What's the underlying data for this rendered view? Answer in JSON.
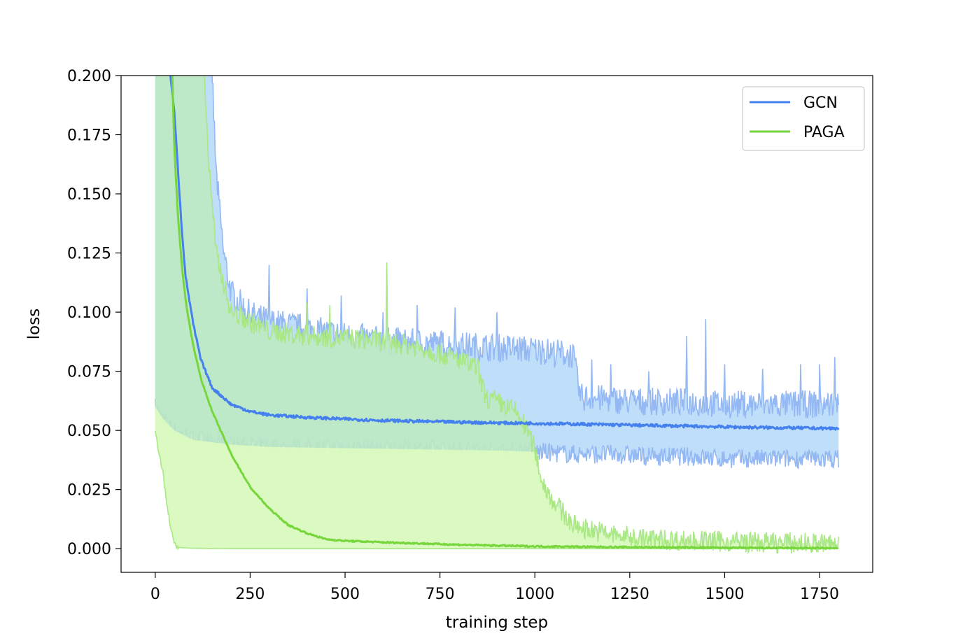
{
  "chart_data": {
    "type": "line",
    "title": "",
    "xlabel": "training step",
    "ylabel": "loss",
    "xlim": [
      -90,
      1890
    ],
    "ylim": [
      -0.01,
      0.2
    ],
    "xticks": [
      0,
      250,
      500,
      750,
      1000,
      1250,
      1500,
      1750
    ],
    "xtick_labels": [
      "0",
      "250",
      "500",
      "750",
      "1000",
      "1250",
      "1500",
      "1750"
    ],
    "yticks": [
      0.0,
      0.025,
      0.05,
      0.075,
      0.1,
      0.125,
      0.15,
      0.175,
      0.2
    ],
    "ytick_labels": [
      "0.000",
      "0.025",
      "0.050",
      "0.075",
      "0.100",
      "0.125",
      "0.150",
      "0.175",
      "0.200"
    ],
    "grid": false,
    "legend": "top-right",
    "series": [
      {
        "name": "GCN",
        "color": "#4580ef",
        "band_color": "#bcdcfa",
        "band_edge_color": "#93b8f4",
        "mean": {
          "x": [
            40,
            50,
            60,
            70,
            80,
            100,
            120,
            150,
            200,
            250,
            300,
            400,
            500,
            600,
            700,
            800,
            900,
            1000,
            1100,
            1200,
            1300,
            1400,
            1500,
            1600,
            1700,
            1800
          ],
          "y": [
            0.2,
            0.185,
            0.16,
            0.135,
            0.115,
            0.095,
            0.08,
            0.068,
            0.061,
            0.058,
            0.0565,
            0.0555,
            0.0548,
            0.0542,
            0.0538,
            0.0535,
            0.0532,
            0.053,
            0.0527,
            0.0524,
            0.0521,
            0.0518,
            0.0515,
            0.0512,
            0.051,
            0.0508
          ]
        },
        "upper": {
          "x": [
            150,
            160,
            180,
            200,
            250,
            300,
            400,
            500,
            600,
            700,
            800,
            900,
            1000,
            1100,
            1120,
            1200,
            1300,
            1400,
            1500,
            1600,
            1700,
            1800
          ],
          "y": [
            0.2,
            0.16,
            0.125,
            0.108,
            0.099,
            0.096,
            0.093,
            0.09,
            0.088,
            0.087,
            0.086,
            0.085,
            0.084,
            0.082,
            0.064,
            0.063,
            0.062,
            0.062,
            0.061,
            0.061,
            0.061,
            0.061
          ]
        },
        "lower": {
          "x": [
            0,
            20,
            50,
            100,
            200,
            300,
            500,
            700,
            900,
            1000,
            1100,
            1200,
            1300,
            1400,
            1500,
            1600,
            1700,
            1800
          ],
          "y": [
            0.06,
            0.055,
            0.05,
            0.046,
            0.044,
            0.043,
            0.0425,
            0.042,
            0.0415,
            0.041,
            0.04,
            0.04,
            0.039,
            0.039,
            0.038,
            0.038,
            0.038,
            0.038
          ]
        },
        "spikes": {
          "x": [
            300,
            400,
            490,
            600,
            690,
            790,
            900,
            1020,
            1150,
            1200,
            1300,
            1400,
            1450,
            1500,
            1600,
            1700,
            1750,
            1790
          ],
          "y": [
            0.12,
            0.11,
            0.107,
            0.1,
            0.103,
            0.102,
            0.1,
            0.088,
            0.08,
            0.078,
            0.075,
            0.09,
            0.097,
            0.078,
            0.076,
            0.078,
            0.078,
            0.081
          ]
        }
      },
      {
        "name": "PAGA",
        "color": "#77d63c",
        "band_color": "#bdebbe",
        "band_low_color": "#ddfbc0",
        "band_edge_color": "#a9e884",
        "mean": {
          "x": [
            45,
            50,
            60,
            70,
            80,
            90,
            100,
            120,
            150,
            200,
            250,
            300,
            350,
            400,
            450,
            500,
            600,
            700,
            800,
            900,
            1000,
            1200,
            1400,
            1600,
            1800
          ],
          "y": [
            0.2,
            0.17,
            0.14,
            0.12,
            0.105,
            0.095,
            0.086,
            0.072,
            0.058,
            0.04,
            0.026,
            0.017,
            0.01,
            0.0065,
            0.004,
            0.0033,
            0.0027,
            0.0022,
            0.0017,
            0.0013,
            0.001,
            0.0007,
            0.0005,
            0.0003,
            0.0002
          ]
        },
        "upper": {
          "x": [
            130,
            140,
            160,
            200,
            300,
            400,
            500,
            600,
            700,
            800,
            850,
            870,
            900,
            950,
            980,
            1000,
            1020,
            1050,
            1100,
            1200,
            1300,
            1500,
            1800
          ],
          "y": [
            0.2,
            0.165,
            0.125,
            0.1,
            0.092,
            0.09,
            0.089,
            0.088,
            0.085,
            0.08,
            0.076,
            0.064,
            0.062,
            0.058,
            0.05,
            0.042,
            0.028,
            0.02,
            0.01,
            0.006,
            0.004,
            0.003,
            0.002
          ]
        },
        "lower": {
          "x": [
            0,
            10,
            20,
            30,
            40,
            50,
            60,
            100,
            200,
            1800
          ],
          "y": [
            0.05,
            0.04,
            0.032,
            0.02,
            0.009,
            0.002,
            0.0005,
            0.0002,
            0.0,
            0.0
          ]
        },
        "spikes": {
          "x": [
            610,
            400,
            460
          ],
          "y": [
            0.121,
            0.104,
            0.103
          ]
        },
        "band_top_cut": [
          {
            "x": 0,
            "y": 0.2
          },
          {
            "x": 130,
            "y": 0.2
          }
        ]
      }
    ]
  }
}
